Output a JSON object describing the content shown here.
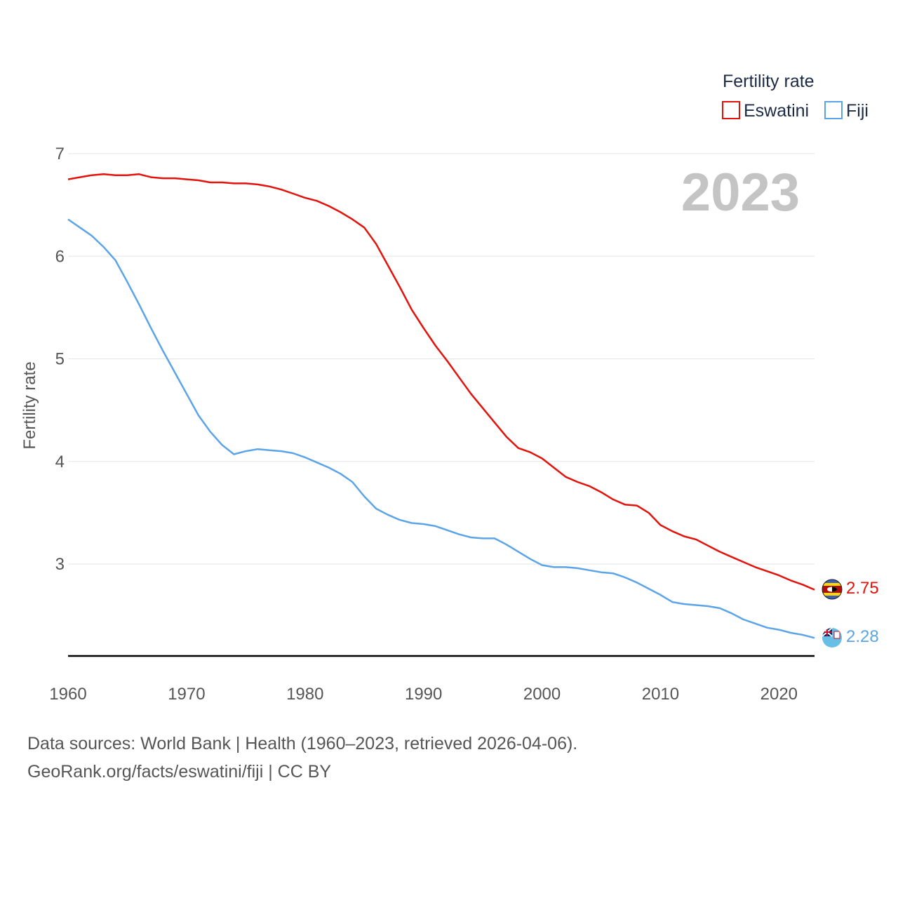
{
  "chart_data": {
    "type": "line",
    "title": "Fertility rate",
    "ylabel": "Fertility rate",
    "xlabel": "",
    "year_stamp": "2023",
    "xlim": [
      1960,
      2023
    ],
    "ylim": [
      2.1,
      7
    ],
    "x_ticks": [
      "1960",
      "1970",
      "1980",
      "1990",
      "2000",
      "2010",
      "2020"
    ],
    "y_ticks": [
      "3",
      "4",
      "5",
      "6",
      "7"
    ],
    "x": [
      1960,
      1961,
      1962,
      1963,
      1964,
      1965,
      1966,
      1967,
      1968,
      1969,
      1970,
      1971,
      1972,
      1973,
      1974,
      1975,
      1976,
      1977,
      1978,
      1979,
      1980,
      1981,
      1982,
      1983,
      1984,
      1985,
      1986,
      1987,
      1988,
      1989,
      1990,
      1991,
      1992,
      1993,
      1994,
      1995,
      1996,
      1997,
      1998,
      1999,
      2000,
      2001,
      2002,
      2003,
      2004,
      2005,
      2006,
      2007,
      2008,
      2009,
      2010,
      2011,
      2012,
      2013,
      2014,
      2015,
      2016,
      2017,
      2018,
      2019,
      2020,
      2021,
      2022,
      2023
    ],
    "series": [
      {
        "name": "Eswatini",
        "color": "#e3120b",
        "end_label": "2.75",
        "values": [
          6.75,
          6.77,
          6.79,
          6.8,
          6.79,
          6.79,
          6.8,
          6.77,
          6.76,
          6.76,
          6.75,
          6.74,
          6.72,
          6.72,
          6.71,
          6.71,
          6.7,
          6.68,
          6.65,
          6.61,
          6.57,
          6.54,
          6.49,
          6.43,
          6.36,
          6.28,
          6.12,
          5.91,
          5.7,
          5.48,
          5.3,
          5.13,
          4.98,
          4.82,
          4.66,
          4.52,
          4.38,
          4.24,
          4.13,
          4.09,
          4.03,
          3.94,
          3.85,
          3.8,
          3.76,
          3.7,
          3.63,
          3.58,
          3.57,
          3.5,
          3.38,
          3.32,
          3.27,
          3.24,
          3.18,
          3.12,
          3.07,
          3.02,
          2.97,
          2.93,
          2.89,
          2.84,
          2.8,
          2.75
        ]
      },
      {
        "name": "Fiji",
        "color": "#5ba4e8",
        "end_label": "2.28",
        "values": [
          6.36,
          6.28,
          6.2,
          6.09,
          5.96,
          5.75,
          5.53,
          5.3,
          5.08,
          4.87,
          4.66,
          4.45,
          4.29,
          4.16,
          4.07,
          4.1,
          4.12,
          4.11,
          4.1,
          4.08,
          4.04,
          3.99,
          3.94,
          3.88,
          3.8,
          3.66,
          3.54,
          3.48,
          3.43,
          3.4,
          3.39,
          3.37,
          3.33,
          3.29,
          3.26,
          3.25,
          3.25,
          3.19,
          3.12,
          3.05,
          2.99,
          2.97,
          2.97,
          2.96,
          2.94,
          2.92,
          2.91,
          2.87,
          2.82,
          2.76,
          2.7,
          2.63,
          2.61,
          2.6,
          2.59,
          2.57,
          2.52,
          2.46,
          2.42,
          2.38,
          2.36,
          2.33,
          2.31,
          2.28
        ]
      }
    ]
  },
  "legend": {
    "title": "Fertility rate",
    "items": [
      "Eswatini",
      "Fiji"
    ]
  },
  "footer": {
    "line1": "Data sources: World Bank | Health (1960–2023, retrieved 2026-04-06).",
    "line2": "GeoRank.org/facts/eswatini/fiji | CC BY"
  }
}
